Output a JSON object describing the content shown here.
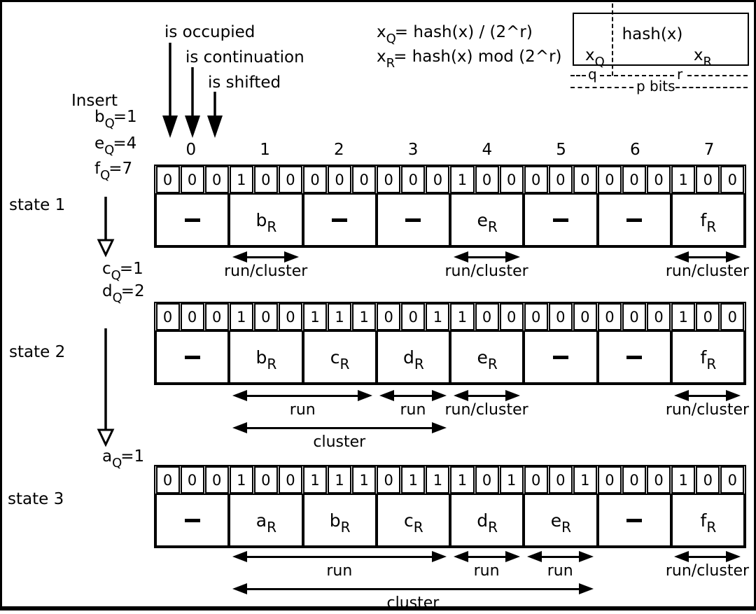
{
  "flags": [
    {
      "label": "is occupied"
    },
    {
      "label": "is continuation"
    },
    {
      "label": "is shifted"
    }
  ],
  "formulas": [
    {
      "base": "x",
      "sub": "Q",
      "rest": "= hash(x) / (2^r)"
    },
    {
      "base": "x",
      "sub": "R",
      "rest": "= hash(x) mod (2^r)"
    }
  ],
  "hash_box": {
    "title": "hash(x)",
    "left_field": {
      "base": "x",
      "sub": "Q"
    },
    "right_field": {
      "base": "x",
      "sub": "R"
    },
    "q_label": "q",
    "r_label": "r",
    "p_label": "p bits"
  },
  "insert": {
    "title": "Insert",
    "items": [
      {
        "base": "b",
        "sub": "Q",
        "rest": "=1"
      },
      {
        "base": "e",
        "sub": "Q",
        "rest": "=4"
      },
      {
        "base": "f",
        "sub": "Q",
        "rest": "=7"
      }
    ]
  },
  "transitions": [
    {
      "items": [
        {
          "base": "c",
          "sub": "Q",
          "rest": "=1"
        },
        {
          "base": "d",
          "sub": "Q",
          "rest": "=2"
        }
      ]
    },
    {
      "items": [
        {
          "base": "a",
          "sub": "Q",
          "rest": "=1"
        }
      ]
    }
  ],
  "slot_indices": [
    "0",
    "1",
    "2",
    "3",
    "4",
    "5",
    "6",
    "7"
  ],
  "states": [
    {
      "label": "state 1",
      "bits": [
        "0",
        "0",
        "0",
        "1",
        "0",
        "0",
        "0",
        "0",
        "0",
        "0",
        "0",
        "0",
        "1",
        "0",
        "0",
        "0",
        "0",
        "0",
        "0",
        "0",
        "0",
        "1",
        "0",
        "0"
      ],
      "values": [
        {
          "dash": true
        },
        {
          "base": "b",
          "sub": "R"
        },
        {
          "dash": true
        },
        {
          "dash": true
        },
        {
          "base": "e",
          "sub": "R"
        },
        {
          "dash": true
        },
        {
          "dash": true
        },
        {
          "base": "f",
          "sub": "R"
        }
      ],
      "annotations": [
        {
          "label": "run/cluster",
          "from": 1,
          "to": 1,
          "row": 0
        },
        {
          "label": "run/cluster",
          "from": 4,
          "to": 4,
          "row": 0
        },
        {
          "label": "run/cluster",
          "from": 7,
          "to": 7,
          "row": 0
        }
      ]
    },
    {
      "label": "state 2",
      "bits": [
        "0",
        "0",
        "0",
        "1",
        "0",
        "0",
        "1",
        "1",
        "1",
        "0",
        "0",
        "1",
        "1",
        "0",
        "0",
        "0",
        "0",
        "0",
        "0",
        "0",
        "0",
        "1",
        "0",
        "0"
      ],
      "values": [
        {
          "dash": true
        },
        {
          "base": "b",
          "sub": "R"
        },
        {
          "base": "c",
          "sub": "R"
        },
        {
          "base": "d",
          "sub": "R"
        },
        {
          "base": "e",
          "sub": "R"
        },
        {
          "dash": true
        },
        {
          "dash": true
        },
        {
          "base": "f",
          "sub": "R"
        }
      ],
      "annotations": [
        {
          "label": "run",
          "from": 1,
          "to": 2,
          "row": 0
        },
        {
          "label": "run",
          "from": 3,
          "to": 3,
          "row": 0
        },
        {
          "label": "run/cluster",
          "from": 4,
          "to": 4,
          "row": 0
        },
        {
          "label": "run/cluster",
          "from": 7,
          "to": 7,
          "row": 0
        },
        {
          "label": "cluster",
          "from": 1,
          "to": 3,
          "row": 1
        }
      ]
    },
    {
      "label": "state 3",
      "bits": [
        "0",
        "0",
        "0",
        "1",
        "0",
        "0",
        "1",
        "1",
        "1",
        "0",
        "1",
        "1",
        "1",
        "0",
        "1",
        "0",
        "0",
        "1",
        "0",
        "0",
        "0",
        "1",
        "0",
        "0"
      ],
      "values": [
        {
          "dash": true
        },
        {
          "base": "a",
          "sub": "R"
        },
        {
          "base": "b",
          "sub": "R"
        },
        {
          "base": "c",
          "sub": "R"
        },
        {
          "base": "d",
          "sub": "R"
        },
        {
          "base": "e",
          "sub": "R"
        },
        {
          "dash": true
        },
        {
          "base": "f",
          "sub": "R"
        }
      ],
      "annotations": [
        {
          "label": "run",
          "from": 1,
          "to": 3,
          "row": 0
        },
        {
          "label": "run",
          "from": 4,
          "to": 4,
          "row": 0
        },
        {
          "label": "run",
          "from": 5,
          "to": 5,
          "row": 0
        },
        {
          "label": "run/cluster",
          "from": 7,
          "to": 7,
          "row": 0
        },
        {
          "label": "cluster",
          "from": 1,
          "to": 5,
          "row": 1
        }
      ]
    }
  ]
}
